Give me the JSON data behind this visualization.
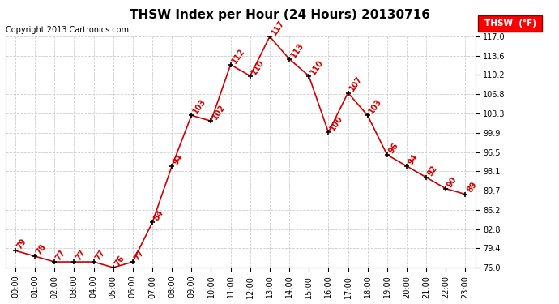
{
  "title": "THSW Index per Hour (24 Hours) 20130716",
  "copyright": "Copyright 2013 Cartronics.com",
  "legend_label": "THSW  (°F)",
  "hours": [
    0,
    1,
    2,
    3,
    4,
    5,
    6,
    7,
    8,
    9,
    10,
    11,
    12,
    13,
    14,
    15,
    16,
    17,
    18,
    19,
    20,
    21,
    22,
    23
  ],
  "values": [
    79,
    78,
    77,
    77,
    77,
    76,
    77,
    84,
    94,
    103,
    102,
    112,
    110,
    117,
    113,
    110,
    100,
    107,
    103,
    96,
    94,
    92,
    90,
    89
  ],
  "line_color": "#cc0000",
  "marker_color": "#000000",
  "label_color": "#cc0000",
  "background_color": "#ffffff",
  "grid_color": "#cccccc",
  "ylim": [
    76.0,
    117.0
  ],
  "yticks": [
    76.0,
    79.4,
    82.8,
    86.2,
    89.7,
    93.1,
    96.5,
    99.9,
    103.3,
    106.8,
    110.2,
    113.6,
    117.0
  ],
  "ytick_labels": [
    "76.0",
    "79.4",
    "82.8",
    "86.2",
    "89.7",
    "93.1",
    "96.5",
    "99.9",
    "103.3",
    "106.8",
    "110.2",
    "113.6",
    "117.0"
  ],
  "title_fontsize": 11,
  "copyright_fontsize": 7,
  "label_fontsize": 7,
  "tick_fontsize": 7,
  "legend_fontsize": 7.5
}
